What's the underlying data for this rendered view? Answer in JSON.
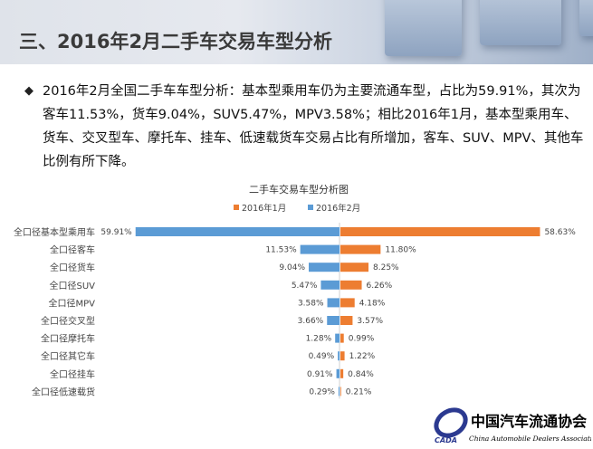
{
  "header": {
    "title": "三、2016年2月二手车交易车型分析"
  },
  "body": {
    "bullet": "◆",
    "text": "2016年2月全国二手车车型分析：基本型乘用车仍为主要流通车型，占比为59.91%，其次为客车11.53%，货车9.04%，SUV5.47%，MPV3.58%；相比2016年1月，基本型乘用车、货车、交叉型车、摩托车、挂车、低速载货车交易占比有所增加，客车、SUV、MPV、其他车比例有所下降。"
  },
  "logo": {
    "name": "中国汽车流通协会",
    "english": "China Automobile Dealers Association",
    "abbr": "CADA"
  },
  "chart_data": {
    "type": "bar",
    "orientation": "horizontal-butterfly",
    "title": "二手车交易车型分析图",
    "legend_position": "top",
    "categories": [
      "全口径基本型乘用车",
      "全口径客车",
      "全口径货车",
      "全口径SUV",
      "全口径MPV",
      "全口径交叉型",
      "全口径摩托车",
      "全口径其它车",
      "全口径挂车",
      "全口径低速载货"
    ],
    "series": [
      {
        "name": "2016年1月",
        "color": "#ed7d31",
        "side": "right",
        "values": [
          58.63,
          11.8,
          8.25,
          6.26,
          4.18,
          3.57,
          0.99,
          1.22,
          0.84,
          0.21
        ],
        "labels": [
          "58.63%",
          "11.80%",
          "8.25%",
          "6.26%",
          "4.18%",
          "3.57%",
          "0.99%",
          "1.22%",
          "0.84%",
          "0.21%"
        ]
      },
      {
        "name": "2016年2月",
        "color": "#5b9bd5",
        "side": "left",
        "values": [
          59.91,
          11.53,
          9.04,
          5.47,
          3.58,
          3.66,
          1.28,
          0.49,
          0.91,
          0.29
        ],
        "labels": [
          "59.91%",
          "11.53%",
          "9.04%",
          "5.47%",
          "3.58%",
          "3.66%",
          "1.28%",
          "0.49%",
          "0.91%",
          "0.29%"
        ]
      }
    ],
    "grid": false
  }
}
